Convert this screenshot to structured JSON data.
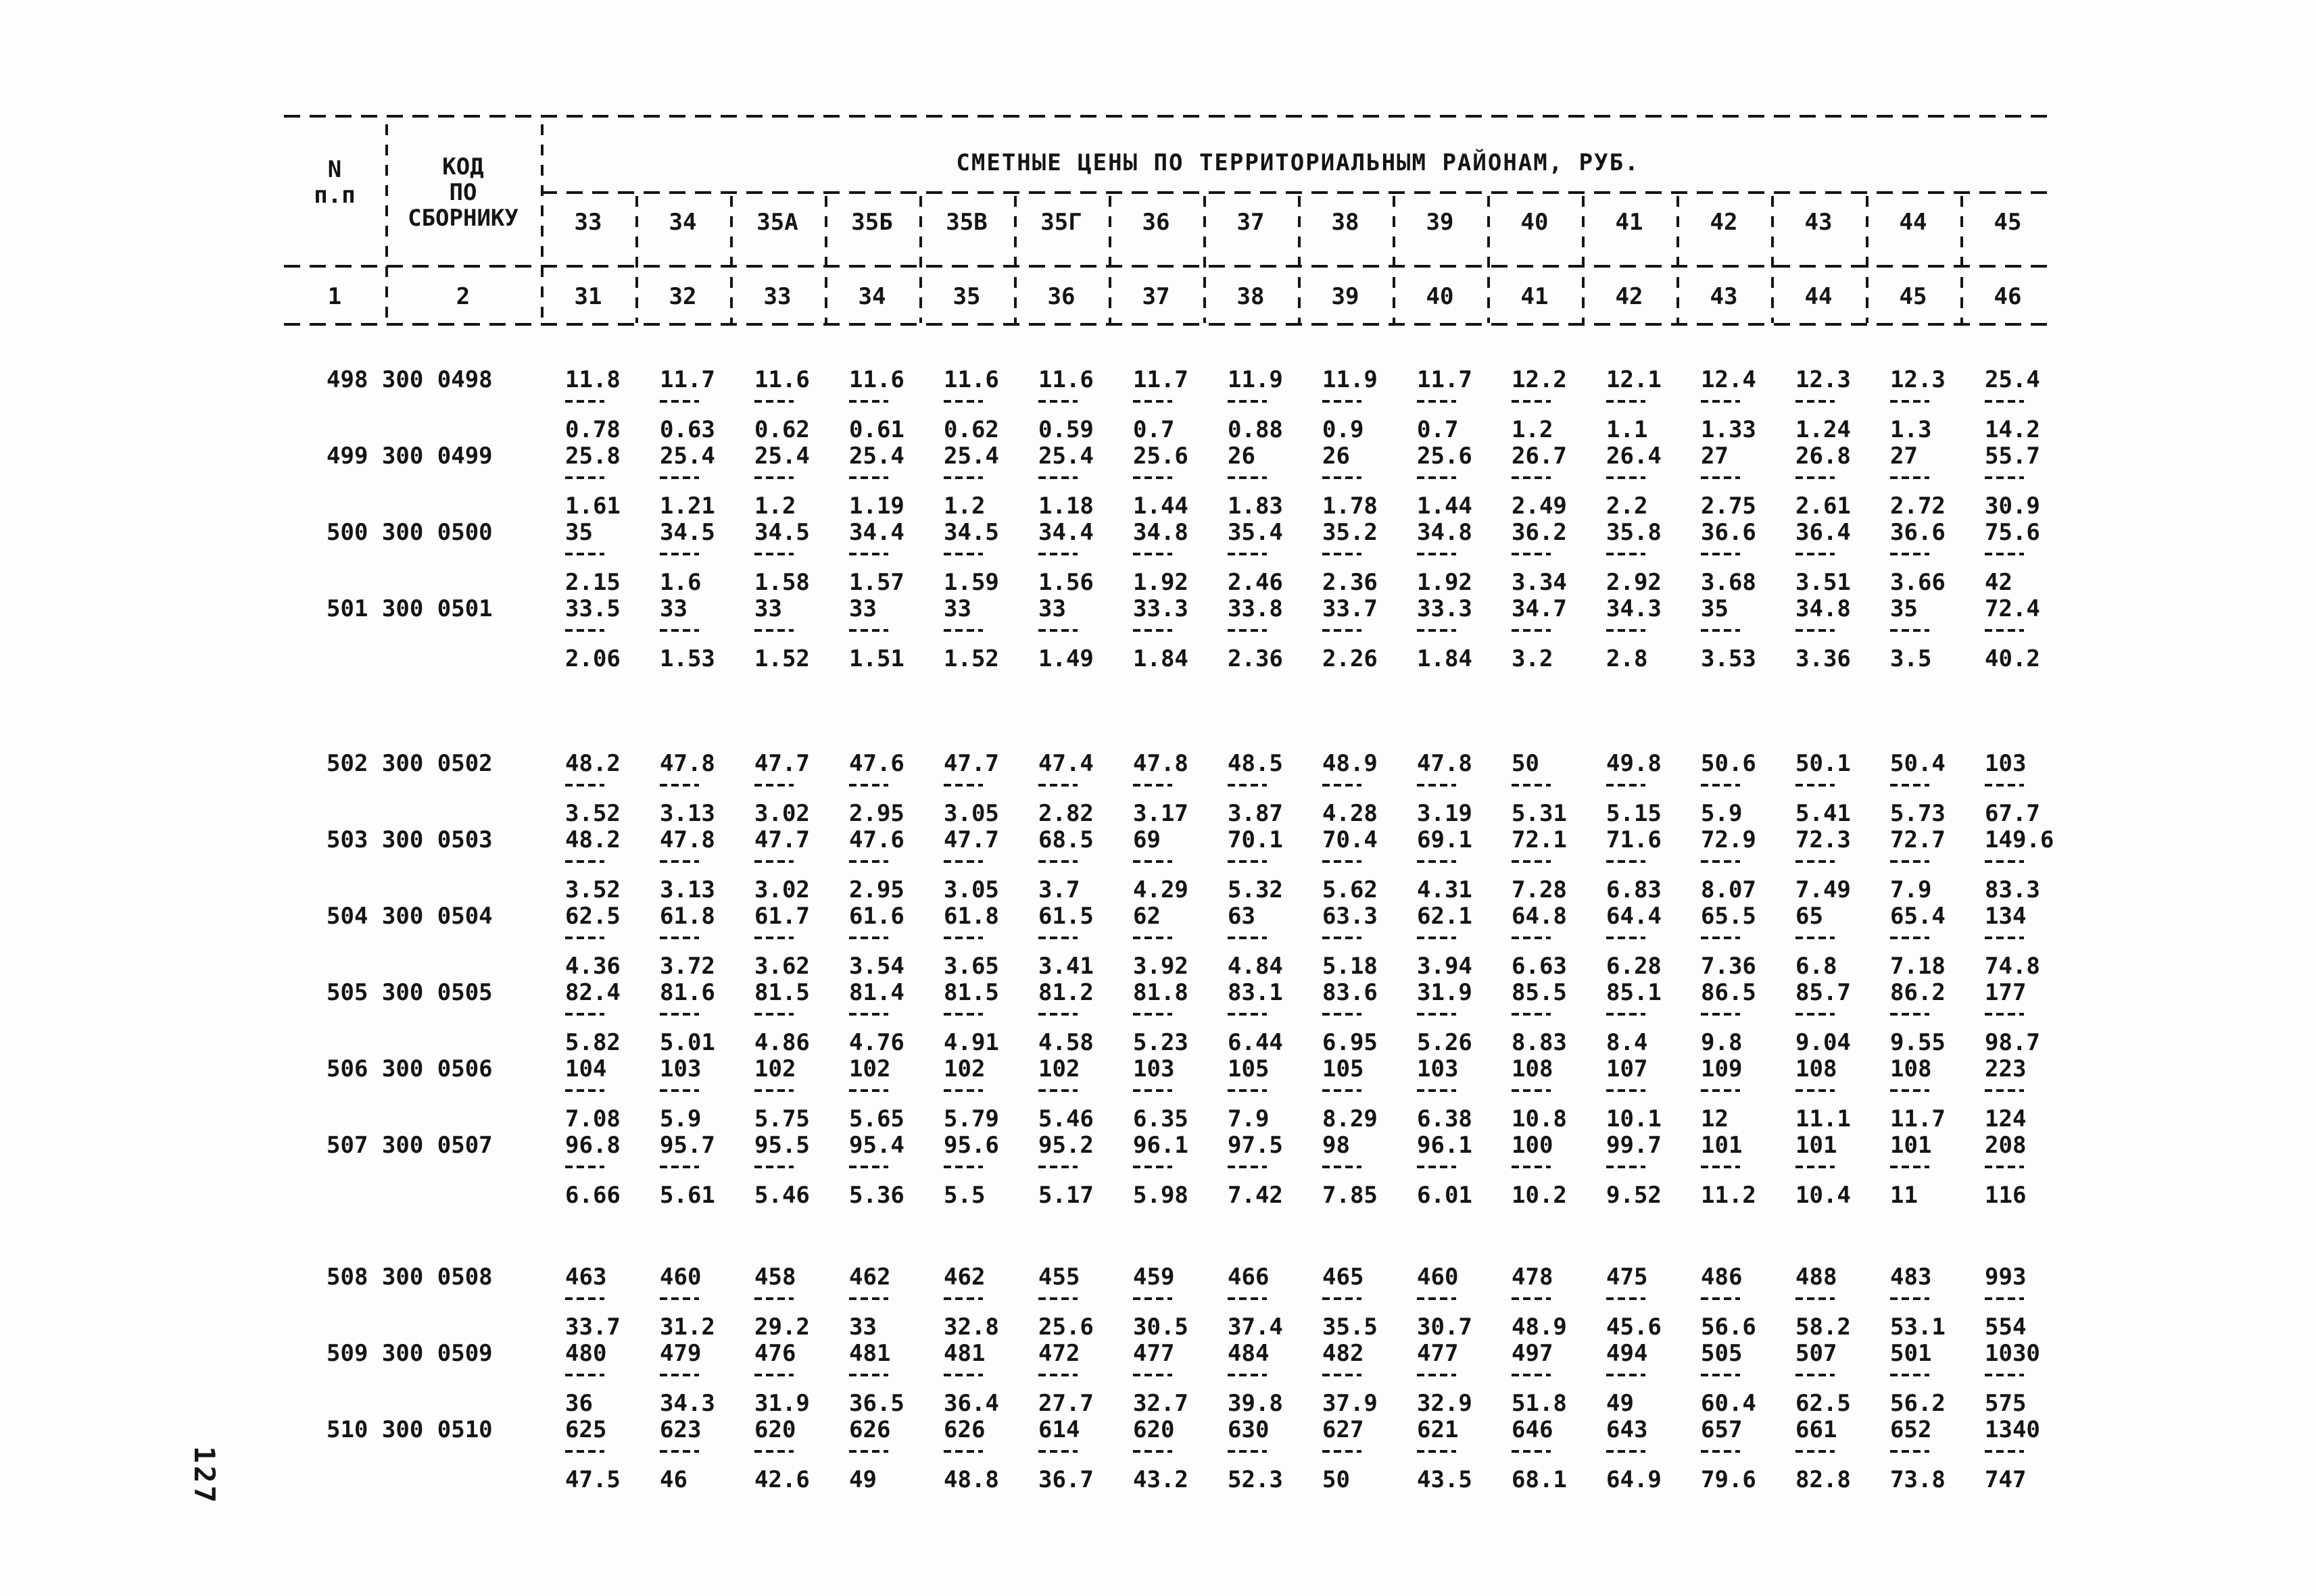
{
  "page": {
    "number": "127"
  },
  "table": {
    "header": {
      "col_n": {
        "line1": "N",
        "line2": "п.п"
      },
      "col_code": {
        "line1": "КОД",
        "line2": "ПО",
        "line3": "СБОРНИКУ"
      },
      "title": "СМЕТНЫЕ ЦЕНЫ ПО ТЕРРИТОРИАЛЬНЫМ РАЙОНАМ, РУБ.",
      "district_columns": [
        "33",
        "34",
        "35А",
        "35Б",
        "35В",
        "35Г",
        "36",
        "37",
        "38",
        "39",
        "40",
        "41",
        "42",
        "43",
        "44",
        "45"
      ],
      "numbering_row": [
        "1",
        "2",
        "31",
        "32",
        "33",
        "34",
        "35",
        "36",
        "37",
        "38",
        "39",
        "40",
        "41",
        "42",
        "43",
        "44",
        "45",
        "46"
      ]
    },
    "groups": [
      {
        "rows": [
          {
            "label": "498 300 0498",
            "num": [
              "11.8",
              "11.7",
              "11.6",
              "11.6",
              "11.6",
              "11.6",
              "11.7",
              "11.9",
              "11.9",
              "11.7",
              "12.2",
              "12.1",
              "12.4",
              "12.3",
              "12.3",
              "25.4"
            ],
            "den": [
              "0.78",
              "0.63",
              "0.62",
              "0.61",
              "0.62",
              "0.59",
              "0.7",
              "0.88",
              "0.9",
              "0.7",
              "1.2",
              "1.1",
              "1.33",
              "1.24",
              "1.3",
              "14.2"
            ]
          },
          {
            "label": "499 300 0499",
            "num": [
              "25.8",
              "25.4",
              "25.4",
              "25.4",
              "25.4",
              "25.4",
              "25.6",
              "26",
              "26",
              "25.6",
              "26.7",
              "26.4",
              "27",
              "26.8",
              "27",
              "55.7"
            ],
            "den": [
              "1.61",
              "1.21",
              "1.2",
              "1.19",
              "1.2",
              "1.18",
              "1.44",
              "1.83",
              "1.78",
              "1.44",
              "2.49",
              "2.2",
              "2.75",
              "2.61",
              "2.72",
              "30.9"
            ]
          },
          {
            "label": "500 300 0500",
            "num": [
              "35",
              "34.5",
              "34.5",
              "34.4",
              "34.5",
              "34.4",
              "34.8",
              "35.4",
              "35.2",
              "34.8",
              "36.2",
              "35.8",
              "36.6",
              "36.4",
              "36.6",
              "75.6"
            ],
            "den": [
              "2.15",
              "1.6",
              "1.58",
              "1.57",
              "1.59",
              "1.56",
              "1.92",
              "2.46",
              "2.36",
              "1.92",
              "3.34",
              "2.92",
              "3.68",
              "3.51",
              "3.66",
              "42"
            ]
          },
          {
            "label": "501 300 0501",
            "num": [
              "33.5",
              "33",
              "33",
              "33",
              "33",
              "33",
              "33.3",
              "33.8",
              "33.7",
              "33.3",
              "34.7",
              "34.3",
              "35",
              "34.8",
              "35",
              "72.4"
            ],
            "den": [
              "2.06",
              "1.53",
              "1.52",
              "1.51",
              "1.52",
              "1.49",
              "1.84",
              "2.36",
              "2.26",
              "1.84",
              "3.2",
              "2.8",
              "3.53",
              "3.36",
              "3.5",
              "40.2"
            ]
          }
        ]
      },
      {
        "rows": [
          {
            "label": "502 300 0502",
            "num": [
              "48.2",
              "47.8",
              "47.7",
              "47.6",
              "47.7",
              "47.4",
              "47.8",
              "48.5",
              "48.9",
              "47.8",
              "50",
              "49.8",
              "50.6",
              "50.1",
              "50.4",
              "103"
            ],
            "den": [
              "3.52",
              "3.13",
              "3.02",
              "2.95",
              "3.05",
              "2.82",
              "3.17",
              "3.87",
              "4.28",
              "3.19",
              "5.31",
              "5.15",
              "5.9",
              "5.41",
              "5.73",
              "67.7"
            ]
          },
          {
            "label": "503 300 0503",
            "num": [
              "48.2",
              "47.8",
              "47.7",
              "47.6",
              "47.7",
              "68.5",
              "69",
              "70.1",
              "70.4",
              "69.1",
              "72.1",
              "71.6",
              "72.9",
              "72.3",
              "72.7",
              "149.6"
            ],
            "den": [
              "3.52",
              "3.13",
              "3.02",
              "2.95",
              "3.05",
              "3.7",
              "4.29",
              "5.32",
              "5.62",
              "4.31",
              "7.28",
              "6.83",
              "8.07",
              "7.49",
              "7.9",
              "83.3"
            ]
          },
          {
            "label": "504 300 0504",
            "num": [
              "62.5",
              "61.8",
              "61.7",
              "61.6",
              "61.8",
              "61.5",
              "62",
              "63",
              "63.3",
              "62.1",
              "64.8",
              "64.4",
              "65.5",
              "65",
              "65.4",
              "134"
            ],
            "den": [
              "4.36",
              "3.72",
              "3.62",
              "3.54",
              "3.65",
              "3.41",
              "3.92",
              "4.84",
              "5.18",
              "3.94",
              "6.63",
              "6.28",
              "7.36",
              "6.8",
              "7.18",
              "74.8"
            ]
          },
          {
            "label": "505 300 0505",
            "num": [
              "82.4",
              "81.6",
              "81.5",
              "81.4",
              "81.5",
              "81.2",
              "81.8",
              "83.1",
              "83.6",
              "31.9",
              "85.5",
              "85.1",
              "86.5",
              "85.7",
              "86.2",
              "177"
            ],
            "den": [
              "5.82",
              "5.01",
              "4.86",
              "4.76",
              "4.91",
              "4.58",
              "5.23",
              "6.44",
              "6.95",
              "5.26",
              "8.83",
              "8.4",
              "9.8",
              "9.04",
              "9.55",
              "98.7"
            ]
          },
          {
            "label": "506 300 0506",
            "num": [
              "104",
              "103",
              "102",
              "102",
              "102",
              "102",
              "103",
              "105",
              "105",
              "103",
              "108",
              "107",
              "109",
              "108",
              "108",
              "223"
            ],
            "den": [
              "7.08",
              "5.9",
              "5.75",
              "5.65",
              "5.79",
              "5.46",
              "6.35",
              "7.9",
              "8.29",
              "6.38",
              "10.8",
              "10.1",
              "12",
              "11.1",
              "11.7",
              "124"
            ]
          },
          {
            "label": "507 300 0507",
            "num": [
              "96.8",
              "95.7",
              "95.5",
              "95.4",
              "95.6",
              "95.2",
              "96.1",
              "97.5",
              "98",
              "96.1",
              "100",
              "99.7",
              "101",
              "101",
              "101",
              "208"
            ],
            "den": [
              "6.66",
              "5.61",
              "5.46",
              "5.36",
              "5.5",
              "5.17",
              "5.98",
              "7.42",
              "7.85",
              "6.01",
              "10.2",
              "9.52",
              "11.2",
              "10.4",
              "11",
              "116"
            ]
          }
        ]
      },
      {
        "rows": [
          {
            "label": "508 300 0508",
            "num": [
              "463",
              "460",
              "458",
              "462",
              "462",
              "455",
              "459",
              "466",
              "465",
              "460",
              "478",
              "475",
              "486",
              "488",
              "483",
              "993"
            ],
            "den": [
              "33.7",
              "31.2",
              "29.2",
              "33",
              "32.8",
              "25.6",
              "30.5",
              "37.4",
              "35.5",
              "30.7",
              "48.9",
              "45.6",
              "56.6",
              "58.2",
              "53.1",
              "554"
            ]
          },
          {
            "label": "509 300 0509",
            "num": [
              "480",
              "479",
              "476",
              "481",
              "481",
              "472",
              "477",
              "484",
              "482",
              "477",
              "497",
              "494",
              "505",
              "507",
              "501",
              "1030"
            ],
            "den": [
              "36",
              "34.3",
              "31.9",
              "36.5",
              "36.4",
              "27.7",
              "32.7",
              "39.8",
              "37.9",
              "32.9",
              "51.8",
              "49",
              "60.4",
              "62.5",
              "56.2",
              "575"
            ]
          },
          {
            "label": "510 300 0510",
            "num": [
              "625",
              "623",
              "620",
              "626",
              "626",
              "614",
              "620",
              "630",
              "627",
              "621",
              "646",
              "643",
              "657",
              "661",
              "652",
              "1340"
            ],
            "den": [
              "47.5",
              "46",
              "42.6",
              "49",
              "48.8",
              "36.7",
              "43.2",
              "52.3",
              "50",
              "43.5",
              "68.1",
              "64.9",
              "79.6",
              "82.8",
              "73.8",
              "747"
            ]
          }
        ]
      }
    ]
  }
}
